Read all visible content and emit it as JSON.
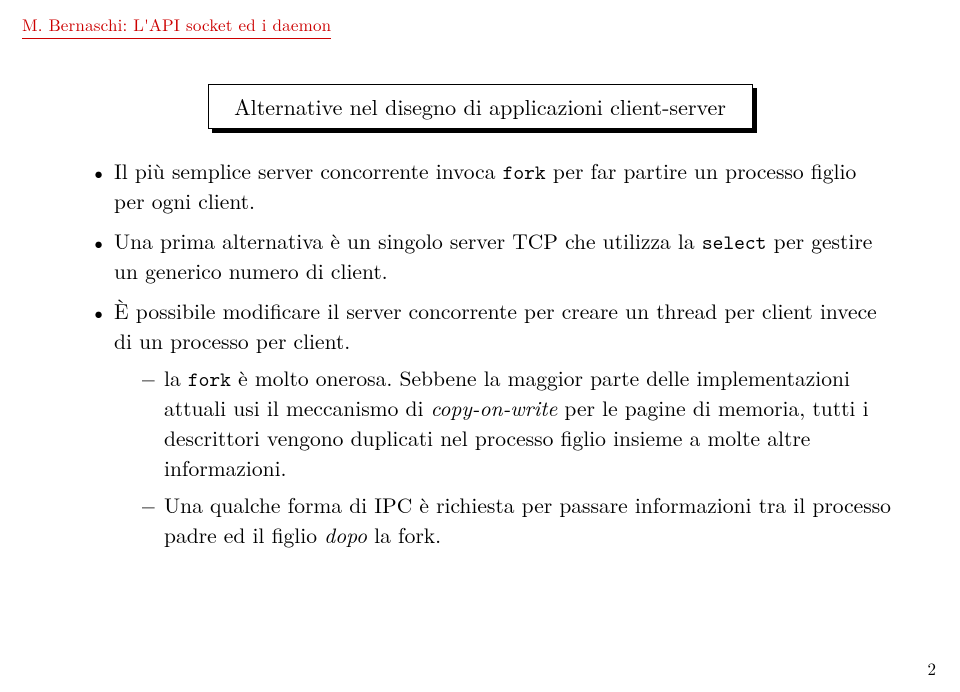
{
  "header": {
    "text": "M. Bernaschi: L'API socket ed i daemon"
  },
  "title": "Alternative nel disegno di applicazioni client-server",
  "bullets": {
    "b1_a": "Il più semplice server concorrente invoca ",
    "b1_tt": "fork",
    "b1_b": " per far partire un processo figlio per ogni client.",
    "b2_a": "Una prima alternativa è un singolo server TCP che utilizza la ",
    "b2_tt": "select",
    "b2_b": " per gestire un generico numero di client.",
    "b3": "È possibile modificare il server concorrente per creare un thread per client invece di un processo per client.",
    "b3_1_a": "la ",
    "b3_1_tt": "fork",
    "b3_1_b": " è molto onerosa. Sebbene la maggior parte delle implementazioni attuali usi il meccanismo di ",
    "b3_1_it": "copy-on-write",
    "b3_1_c": " per le pagine di memoria, tutti i descrittori vengono duplicati nel processo figlio insieme a molte altre informazioni.",
    "b3_2_a": "Una qualche forma di IPC è richiesta per passare informazioni tra il processo padre ed il figlio ",
    "b3_2_it": "dopo",
    "b3_2_b": " la fork."
  },
  "pageNumber": "2"
}
